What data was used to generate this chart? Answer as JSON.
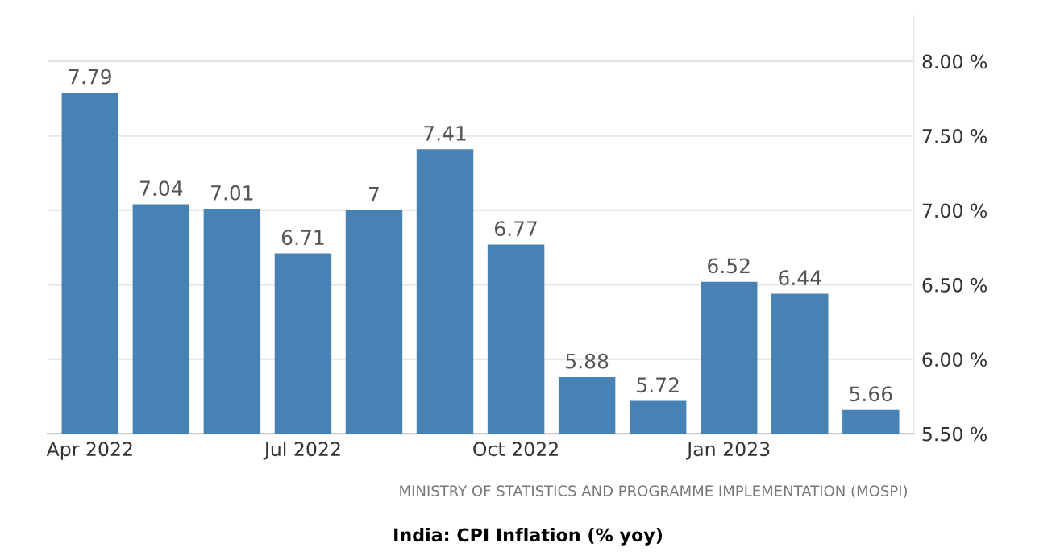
{
  "chart_data": {
    "type": "bar",
    "title": "India: CPI Inflation (% yoy)",
    "categories": [
      "Apr 2022",
      null,
      null,
      "Jul 2022",
      null,
      null,
      "Oct 2022",
      null,
      null,
      "Jan 2023",
      null,
      null
    ],
    "values": [
      7.79,
      7.04,
      7.01,
      6.71,
      7,
      7.41,
      6.77,
      5.88,
      5.72,
      6.52,
      6.44,
      5.66
    ],
    "value_labels": [
      "7.79",
      "7.04",
      "7.01",
      "6.71",
      "7",
      "7.41",
      "6.77",
      "5.88",
      "5.72",
      "6.52",
      "6.44",
      "5.66"
    ],
    "color": "#4682b4",
    "ylim": [
      5.5,
      8.3
    ],
    "yticks": [
      {
        "value": 5.5,
        "label": "5.50 %"
      },
      {
        "value": 6,
        "label": "6.00 %"
      },
      {
        "value": 6.5,
        "label": "6.50 %"
      },
      {
        "value": 7,
        "label": "7.00 %"
      },
      {
        "value": 7.5,
        "label": "7.50 %"
      },
      {
        "value": 8,
        "label": "8.00 %"
      }
    ],
    "grid": "y",
    "annotations": [
      "MINISTRY OF STATISTICS AND PROGRAMME IMPLEMENTATION (MOSPI)"
    ]
  }
}
